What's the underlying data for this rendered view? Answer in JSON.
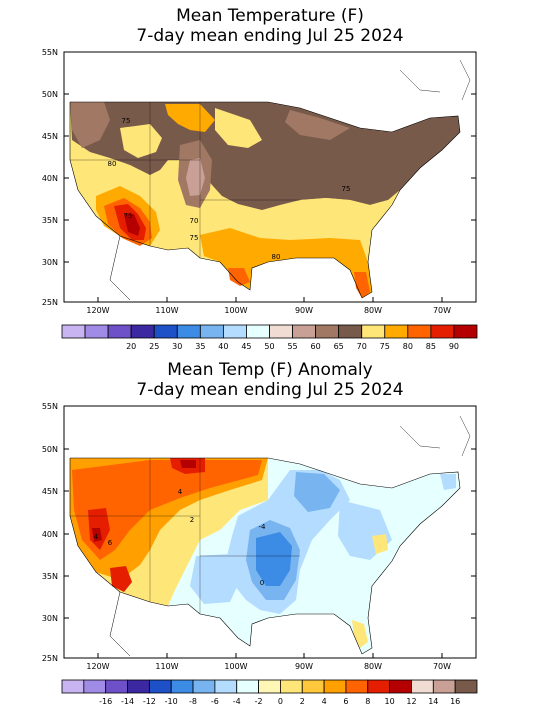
{
  "top": {
    "title_line1": "Mean Temperature (F)",
    "title_line2": "7-day mean ending Jul 25 2024",
    "lat_labels": [
      "55N",
      "50N",
      "45N",
      "40N",
      "35N",
      "30N",
      "25N"
    ],
    "lon_labels": [
      "120W",
      "110W",
      "100W",
      "90W",
      "80W",
      "70W"
    ],
    "contour_labels": [
      "75",
      "80",
      "70",
      "75",
      "75",
      "80",
      "75"
    ],
    "legend": {
      "values": [
        "20",
        "25",
        "30",
        "35",
        "40",
        "45",
        "50",
        "55",
        "60",
        "65",
        "70",
        "75",
        "80",
        "85",
        "90"
      ],
      "colors": [
        "#c8b4f0",
        "#a08ce6",
        "#6e50c8",
        "#3c28a0",
        "#1e50c8",
        "#3c8ce6",
        "#78b4f0",
        "#b4dcff",
        "#e6ffff",
        "#f0dcd2",
        "#c8a096",
        "#a07864",
        "#785a4b",
        "#ffe678",
        "#ffaa00",
        "#ff6400",
        "#e61e00",
        "#b40000"
      ]
    }
  },
  "bottom": {
    "title_line1": "Mean Temp (F) Anomaly",
    "title_line2": "7-day mean ending Jul 25 2024",
    "lat_labels": [
      "55N",
      "50N",
      "45N",
      "40N",
      "35N",
      "30N",
      "25N"
    ],
    "lon_labels": [
      "120W",
      "110W",
      "100W",
      "90W",
      "80W",
      "70W"
    ],
    "contour_labels": [
      "4",
      "2",
      "-4",
      "0",
      "6",
      "4"
    ],
    "legend": {
      "values": [
        "-16",
        "-14",
        "-12",
        "-10",
        "-8",
        "-6",
        "-4",
        "-2",
        "0",
        "2",
        "4",
        "6",
        "8",
        "10",
        "12",
        "14",
        "16"
      ],
      "colors": [
        "#c8b4f0",
        "#a08ce6",
        "#6e50c8",
        "#3c28a0",
        "#1e50c8",
        "#3c8ce6",
        "#78b4f0",
        "#b4dcff",
        "#e6ffff",
        "#fff5b4",
        "#ffe678",
        "#ffc83c",
        "#ffa000",
        "#ff6400",
        "#e61e00",
        "#b40000",
        "#f0dcd2",
        "#c8a096",
        "#785a4b"
      ]
    }
  }
}
